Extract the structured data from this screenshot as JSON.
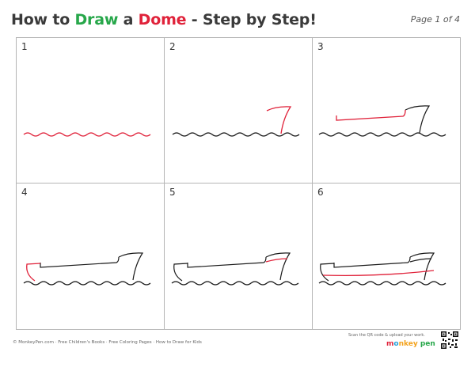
{
  "header": {
    "title_part1": "How to ",
    "title_part2": "Draw",
    "title_part3": " a ",
    "title_part4": "Dome",
    "title_part5": " - Step by Step!",
    "page_label": "Page 1 of 4"
  },
  "steps": [
    {
      "number": "1"
    },
    {
      "number": "2"
    },
    {
      "number": "3"
    },
    {
      "number": "4"
    },
    {
      "number": "5"
    },
    {
      "number": "6"
    }
  ],
  "colors": {
    "highlight": "#e0223a",
    "line": "#1a1a1a",
    "title_green": "#27a74a",
    "title_red": "#e0223a"
  },
  "footer": {
    "links": "© MonkeyPen.com  ·  Free Children's Books  ·  Free Coloring Pages  ·  How to Draw for Kids",
    "scan_text": "Scan the QR code & upload your work.",
    "brand_1": "m",
    "brand_2": "o",
    "brand_3": "nkey",
    "brand_4": " pen"
  }
}
